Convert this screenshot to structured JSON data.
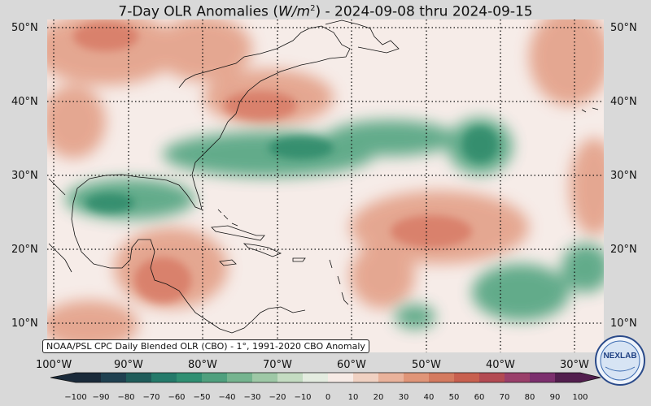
{
  "title": {
    "prefix": "7-Day OLR Anomalies (",
    "unit_base": "W/m",
    "unit_exp": "2",
    "suffix": ") - 2024-09-08 thru 2024-09-15"
  },
  "lat_labels": [
    "50°N",
    "40°N",
    "30°N",
    "20°N",
    "10°N"
  ],
  "lon_labels": [
    "100°W",
    "90°W",
    "80°W",
    "70°W",
    "60°W",
    "50°W",
    "40°W",
    "30°W"
  ],
  "credit": "NOAA/PSL CPC Daily Blended OLR (CBO) - 1°, 1991-2020 CBO Anomaly",
  "colorbar": {
    "ticks": [
      "−100",
      "−90",
      "−80",
      "−70",
      "−60",
      "−50",
      "−40",
      "−30",
      "−20",
      "−10",
      "0",
      "10",
      "20",
      "30",
      "40",
      "50",
      "60",
      "70",
      "80",
      "90",
      "100"
    ],
    "colors_negative": [
      "#1a2a3a",
      "#1f4050",
      "#1f5c5a",
      "#247a6a",
      "#2f8f72",
      "#4fa07e",
      "#75b48f",
      "#9ec8a6",
      "#c4dcc2",
      "#e4ece0"
    ],
    "colors_positive": [
      "#f7ebe6",
      "#f0d1c2",
      "#e9b29b",
      "#e09578",
      "#d47a5f",
      "#c8604f",
      "#b34a52",
      "#9a3f6a",
      "#7c2f6e",
      "#521e4e"
    ]
  },
  "logo_text": "NEXLAB",
  "map": {
    "lon_range": [
      -102,
      -26
    ],
    "lat_range": [
      6,
      52
    ],
    "background": "#f6ece8",
    "positive_color": "#e39e86",
    "negative_color": "#3e9a74"
  }
}
